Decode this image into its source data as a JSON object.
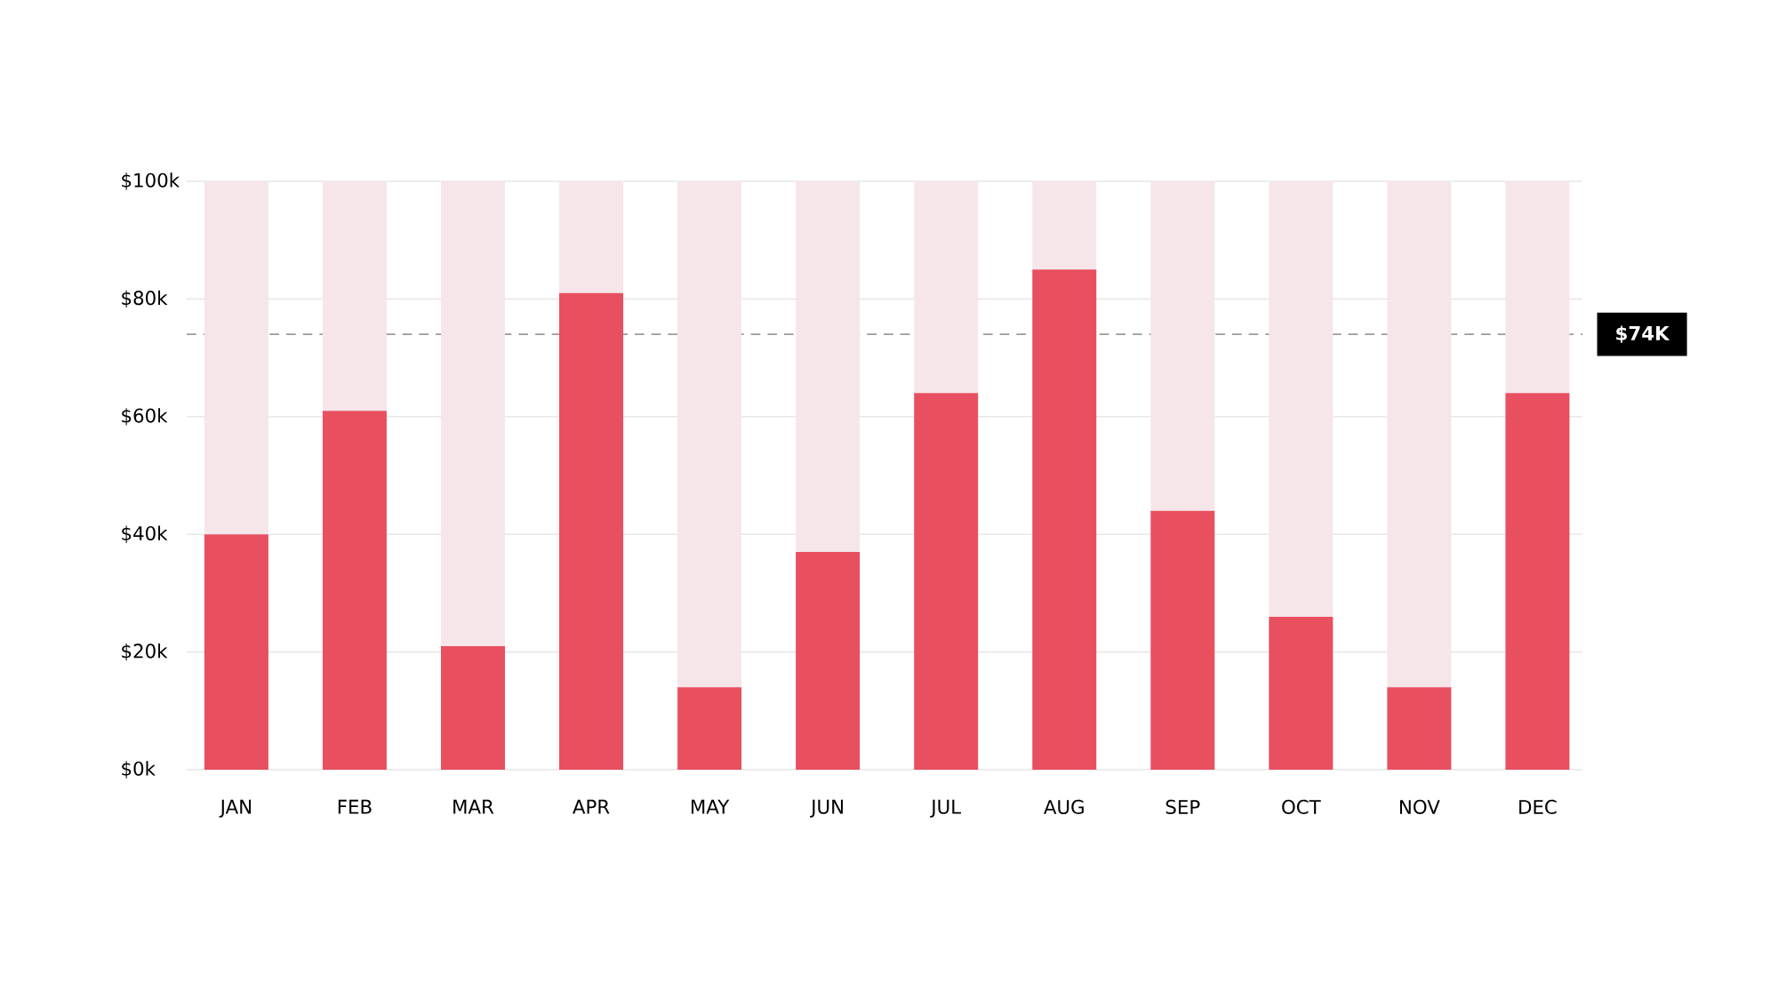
{
  "chart_data": {
    "type": "bar",
    "stacked": true,
    "categories": [
      "JAN",
      "FEB",
      "MAR",
      "APR",
      "MAY",
      "JUN",
      "JUL",
      "AUG",
      "SEP",
      "OCT",
      "NOV",
      "DEC"
    ],
    "series": [
      {
        "color": "#e84f5f",
        "values": [
          40,
          61,
          21,
          81,
          14,
          37,
          64,
          85,
          44,
          26,
          14,
          64
        ]
      },
      {
        "color": "#f6e6e9",
        "values": [
          60,
          39,
          79,
          19,
          86,
          63,
          36,
          15,
          56,
          74,
          86,
          36
        ]
      }
    ],
    "ylim": [
      0,
      100
    ],
    "yticks": [
      {
        "value": 0,
        "label": "$0k"
      },
      {
        "value": 20,
        "label": "$20k"
      },
      {
        "value": 40,
        "label": "$40k"
      },
      {
        "value": 60,
        "label": "$60k"
      },
      {
        "value": 80,
        "label": "$80k"
      },
      {
        "value": 100,
        "label": "$100k"
      }
    ],
    "grid": "y",
    "ref_lines": [
      {
        "axis": "y",
        "value": 74,
        "label": "$74K",
        "color": "#9a9a9a",
        "line_style": "dashed"
      }
    ]
  }
}
